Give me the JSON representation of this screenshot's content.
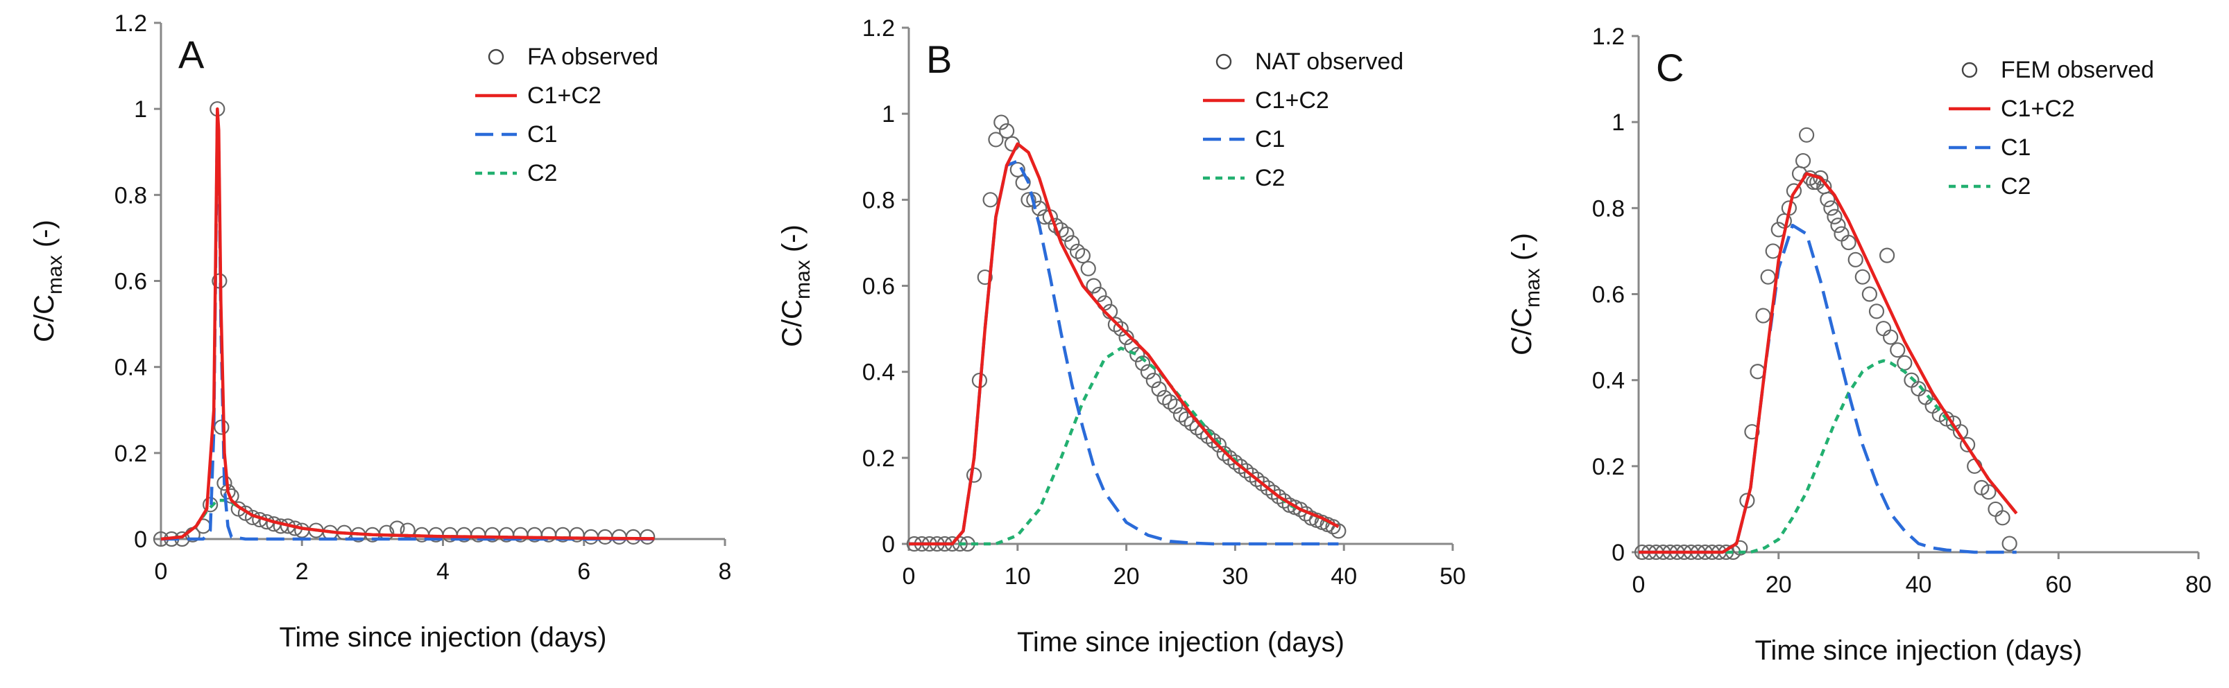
{
  "chart_data": [
    {
      "type": "line",
      "panel_letter": "A",
      "xlabel": "Time since injection (days)",
      "ylabel_main": "C/C",
      "ylabel_sub": "max",
      "ylabel_suffix": " (-)",
      "xlim": [
        0,
        8
      ],
      "ylim": [
        0,
        1.2
      ],
      "x_ticks": [
        0,
        2,
        4,
        6,
        8
      ],
      "x_tick_labels": [
        "0",
        "2",
        "4",
        "6",
        "8"
      ],
      "y_ticks": [
        0,
        0.2,
        0.4,
        0.6,
        0.8,
        1,
        1.2
      ],
      "y_tick_labels": [
        "0",
        "0.2",
        "0.4",
        "0.6",
        "0.8",
        "1",
        "1.2"
      ],
      "legend_position": "top-right",
      "legend": [
        "FA observed",
        "C1+C2",
        "C1",
        "C2"
      ],
      "observed": {
        "name": "FA observed",
        "x": [
          0,
          0.15,
          0.3,
          0.45,
          0.6,
          0.7,
          0.8,
          0.83,
          0.86,
          0.9,
          0.95,
          1.0,
          1.1,
          1.2,
          1.3,
          1.4,
          1.5,
          1.6,
          1.7,
          1.8,
          1.9,
          2.0,
          2.2,
          2.4,
          2.6,
          2.8,
          3.0,
          3.2,
          3.35,
          3.5,
          3.7,
          3.9,
          4.1,
          4.3,
          4.5,
          4.7,
          4.9,
          5.1,
          5.3,
          5.5,
          5.7,
          5.9,
          6.1,
          6.3,
          6.5,
          6.7,
          6.9
        ],
        "y": [
          0,
          0,
          0,
          0.01,
          0.03,
          0.08,
          1.0,
          0.6,
          0.26,
          0.13,
          0.11,
          0.1,
          0.07,
          0.06,
          0.05,
          0.045,
          0.04,
          0.035,
          0.03,
          0.03,
          0.025,
          0.02,
          0.02,
          0.015,
          0.015,
          0.01,
          0.01,
          0.015,
          0.025,
          0.02,
          0.01,
          0.01,
          0.01,
          0.01,
          0.01,
          0.01,
          0.01,
          0.01,
          0.01,
          0.01,
          0.01,
          0.01,
          0.005,
          0.005,
          0.005,
          0.005,
          0.005
        ]
      },
      "series": [
        {
          "name": "C1+C2",
          "color": "#e8201e",
          "dash": "solid",
          "x": [
            0,
            0.3,
            0.5,
            0.65,
            0.75,
            0.8,
            0.82,
            0.85,
            0.9,
            0.95,
            1.0,
            1.1,
            1.3,
            1.6,
            2.0,
            2.5,
            3.0,
            4.0,
            5.0,
            6.0,
            7.0
          ],
          "y": [
            0,
            0.005,
            0.03,
            0.07,
            0.3,
            1.0,
            0.95,
            0.55,
            0.2,
            0.11,
            0.09,
            0.075,
            0.055,
            0.04,
            0.025,
            0.015,
            0.01,
            0.006,
            0.004,
            0.002,
            0.001
          ]
        },
        {
          "name": "C1",
          "color": "#2a6bd9",
          "dash": "long",
          "x": [
            0,
            0.6,
            0.7,
            0.75,
            0.8,
            0.82,
            0.85,
            0.9,
            0.95,
            1.0,
            1.2,
            7.0
          ],
          "y": [
            0,
            0,
            0.02,
            0.25,
            0.98,
            0.92,
            0.5,
            0.12,
            0.03,
            0.005,
            0,
            0
          ]
        },
        {
          "name": "C2",
          "color": "#22b070",
          "dash": "short",
          "x": [
            0,
            0.3,
            0.5,
            0.65,
            0.8,
            0.9,
            1.0,
            1.1,
            1.3,
            1.6,
            2.0,
            2.5,
            3.0,
            4.0,
            5.0,
            6.0,
            7.0
          ],
          "y": [
            0,
            0.005,
            0.03,
            0.065,
            0.09,
            0.09,
            0.085,
            0.075,
            0.055,
            0.04,
            0.025,
            0.015,
            0.01,
            0.006,
            0.004,
            0.002,
            0.001
          ]
        }
      ]
    },
    {
      "type": "line",
      "panel_letter": "B",
      "xlabel": "Time since injection (days)",
      "ylabel_main": "C/C",
      "ylabel_sub": "max",
      "ylabel_suffix": " (-)",
      "xlim": [
        0,
        50
      ],
      "ylim": [
        0,
        1.2
      ],
      "x_ticks": [
        0,
        10,
        20,
        30,
        40,
        50
      ],
      "x_tick_labels": [
        "0",
        "10",
        "20",
        "30",
        "40",
        "50"
      ],
      "y_ticks": [
        0,
        0.2,
        0.4,
        0.6,
        0.8,
        1,
        1.2
      ],
      "y_tick_labels": [
        "0",
        "0.2",
        "0.4",
        "0.6",
        "0.8",
        "1",
        "1.2"
      ],
      "legend_position": "top-right",
      "legend": [
        "NAT observed",
        "C1+C2",
        "C1",
        "C2"
      ],
      "observed": {
        "name": "NAT observed",
        "x": [
          0.5,
          1.2,
          1.9,
          2.6,
          3.3,
          4.0,
          4.7,
          5.4,
          6.0,
          6.5,
          7.0,
          7.5,
          8.0,
          8.5,
          9.0,
          9.5,
          10.0,
          10.5,
          11.0,
          11.5,
          12.0,
          12.5,
          13.0,
          13.5,
          14.0,
          14.5,
          15.0,
          15.5,
          16.0,
          16.5,
          17.0,
          17.5,
          18.0,
          18.5,
          19.0,
          19.5,
          20.0,
          20.5,
          21.0,
          21.5,
          22.0,
          22.5,
          23.0,
          23.5,
          24.0,
          24.5,
          25.0,
          25.5,
          26.0,
          26.5,
          27.0,
          27.5,
          28.0,
          28.5,
          29.0,
          29.5,
          30.0,
          30.5,
          31.0,
          31.5,
          32.0,
          32.5,
          33.0,
          33.5,
          34.0,
          34.5,
          35.0,
          35.5,
          36.0,
          36.5,
          37.0,
          37.5,
          38.0,
          38.5,
          39.0,
          39.5
        ],
        "y": [
          0,
          0,
          0,
          0,
          0,
          0,
          0,
          0,
          0.16,
          0.38,
          0.62,
          0.8,
          0.94,
          0.98,
          0.96,
          0.93,
          0.87,
          0.84,
          0.8,
          0.8,
          0.78,
          0.76,
          0.76,
          0.74,
          0.73,
          0.72,
          0.7,
          0.68,
          0.67,
          0.64,
          0.6,
          0.58,
          0.56,
          0.54,
          0.51,
          0.5,
          0.48,
          0.46,
          0.44,
          0.42,
          0.4,
          0.38,
          0.36,
          0.34,
          0.33,
          0.32,
          0.3,
          0.29,
          0.28,
          0.27,
          0.26,
          0.25,
          0.24,
          0.23,
          0.21,
          0.2,
          0.19,
          0.18,
          0.17,
          0.16,
          0.15,
          0.14,
          0.13,
          0.12,
          0.11,
          0.1,
          0.09,
          0.085,
          0.08,
          0.07,
          0.06,
          0.055,
          0.05,
          0.045,
          0.04,
          0.03
        ]
      },
      "series": [
        {
          "name": "C1+C2",
          "color": "#e8201e",
          "dash": "solid",
          "x": [
            0,
            4,
            5,
            6,
            7,
            8,
            9,
            10,
            11,
            12,
            13,
            14,
            16,
            18,
            20,
            22,
            24,
            26,
            28,
            30,
            32,
            34,
            36,
            38,
            39.5
          ],
          "y": [
            0,
            0,
            0.03,
            0.2,
            0.5,
            0.76,
            0.88,
            0.93,
            0.91,
            0.85,
            0.77,
            0.7,
            0.6,
            0.54,
            0.49,
            0.44,
            0.37,
            0.3,
            0.24,
            0.19,
            0.15,
            0.11,
            0.08,
            0.06,
            0.04
          ]
        },
        {
          "name": "C1",
          "color": "#2a6bd9",
          "dash": "long",
          "x": [
            0,
            4,
            5,
            6,
            7,
            8,
            9,
            10,
            11,
            12,
            13,
            14,
            15,
            16,
            17,
            18,
            20,
            22,
            24,
            26,
            28,
            30,
            35,
            39.5
          ],
          "y": [
            0,
            0,
            0.03,
            0.2,
            0.5,
            0.76,
            0.88,
            0.89,
            0.84,
            0.74,
            0.62,
            0.49,
            0.37,
            0.27,
            0.18,
            0.12,
            0.05,
            0.02,
            0.006,
            0.002,
            0,
            0,
            0,
            0
          ]
        },
        {
          "name": "C2",
          "color": "#22b070",
          "dash": "short",
          "x": [
            0,
            8,
            10,
            12,
            14,
            16,
            18,
            19.5,
            21,
            23,
            25,
            27,
            29,
            31,
            33,
            35,
            37,
            39.5
          ],
          "y": [
            0,
            0,
            0.02,
            0.08,
            0.2,
            0.33,
            0.43,
            0.455,
            0.44,
            0.4,
            0.34,
            0.28,
            0.22,
            0.17,
            0.13,
            0.09,
            0.07,
            0.04
          ]
        }
      ]
    },
    {
      "type": "line",
      "panel_letter": "C",
      "xlabel": "Time since injection (days)",
      "ylabel_main": "C/C",
      "ylabel_sub": "max",
      "ylabel_suffix": " (-)",
      "xlim": [
        0,
        80
      ],
      "ylim": [
        0,
        1.2
      ],
      "x_ticks": [
        0,
        20,
        40,
        60,
        80
      ],
      "x_tick_labels": [
        "0",
        "20",
        "40",
        "60",
        "80"
      ],
      "y_ticks": [
        0,
        0.2,
        0.4,
        0.6,
        0.8,
        1,
        1.2
      ],
      "y_tick_labels": [
        "0",
        "0.2",
        "0.4",
        "0.6",
        "0.8",
        "1",
        "1.2"
      ],
      "legend_position": "top-right",
      "legend": [
        "FEM observed",
        "C1+C2",
        "C1",
        "C2"
      ],
      "observed": {
        "name": "FEM observed",
        "x": [
          0.5,
          1.5,
          2.5,
          3.5,
          4.5,
          5.5,
          6.5,
          7.5,
          8.5,
          9.5,
          10.5,
          11.5,
          12.5,
          13.5,
          14.5,
          15.5,
          16.2,
          17,
          17.8,
          18.5,
          19.2,
          20,
          20.8,
          21.5,
          22.2,
          23,
          23.5,
          24,
          24.5,
          25,
          25.5,
          26,
          26.5,
          27,
          27.5,
          28,
          28.5,
          29,
          30,
          31,
          32,
          33,
          34,
          35,
          35.5,
          36,
          37,
          38,
          39,
          40,
          41,
          42,
          43,
          44,
          45,
          46,
          47,
          48,
          49,
          50,
          51,
          52,
          53
        ],
        "y": [
          0,
          0,
          0,
          0,
          0,
          0,
          0,
          0,
          0,
          0,
          0,
          0,
          0,
          0,
          0.01,
          0.12,
          0.28,
          0.42,
          0.55,
          0.64,
          0.7,
          0.75,
          0.77,
          0.8,
          0.84,
          0.88,
          0.91,
          0.97,
          0.87,
          0.86,
          0.86,
          0.87,
          0.85,
          0.82,
          0.8,
          0.78,
          0.76,
          0.74,
          0.72,
          0.68,
          0.64,
          0.6,
          0.56,
          0.52,
          0.69,
          0.5,
          0.47,
          0.44,
          0.4,
          0.38,
          0.36,
          0.34,
          0.32,
          0.31,
          0.3,
          0.28,
          0.25,
          0.2,
          0.15,
          0.14,
          0.1,
          0.08,
          0.02
        ]
      },
      "series": [
        {
          "name": "C1+C2",
          "color": "#e8201e",
          "dash": "solid",
          "x": [
            0,
            12,
            14,
            16,
            18,
            20,
            22,
            24,
            26,
            28,
            30,
            32,
            34,
            36,
            38,
            40,
            42,
            44,
            46,
            48,
            50,
            52,
            54
          ],
          "y": [
            0,
            0,
            0.02,
            0.15,
            0.42,
            0.68,
            0.83,
            0.88,
            0.87,
            0.83,
            0.77,
            0.7,
            0.63,
            0.56,
            0.49,
            0.43,
            0.37,
            0.32,
            0.27,
            0.22,
            0.17,
            0.13,
            0.09
          ]
        },
        {
          "name": "C1",
          "color": "#2a6bd9",
          "dash": "long",
          "x": [
            0,
            12,
            14,
            16,
            18,
            20,
            22,
            24,
            26,
            28,
            30,
            32,
            34,
            36,
            38,
            40,
            42,
            44,
            48,
            54
          ],
          "y": [
            0,
            0,
            0.02,
            0.15,
            0.42,
            0.66,
            0.76,
            0.74,
            0.63,
            0.5,
            0.37,
            0.25,
            0.16,
            0.09,
            0.05,
            0.02,
            0.01,
            0.005,
            0,
            0
          ]
        },
        {
          "name": "C2",
          "color": "#22b070",
          "dash": "short",
          "x": [
            0,
            16,
            18,
            20,
            22,
            24,
            26,
            28,
            30,
            32,
            34,
            35,
            36,
            38,
            40,
            42,
            44,
            46,
            48,
            50,
            52,
            54
          ],
          "y": [
            0,
            0,
            0.01,
            0.03,
            0.08,
            0.14,
            0.22,
            0.3,
            0.37,
            0.42,
            0.44,
            0.445,
            0.44,
            0.42,
            0.39,
            0.35,
            0.31,
            0.27,
            0.22,
            0.17,
            0.13,
            0.09
          ]
        }
      ]
    }
  ]
}
